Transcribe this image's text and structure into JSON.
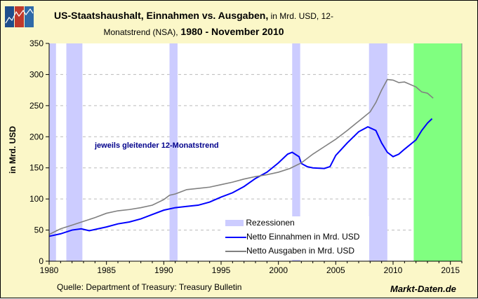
{
  "chart_data": {
    "type": "line",
    "title_bold_1": "US-Staatshaushalt, Einnahmen vs. Ausgaben,",
    "title_normal_1": " in Mrd. USD, 12-",
    "title_normal_2": "Monatstrend (NSA),",
    "title_bold_2": " 1980 - November 2010",
    "ylabel": "in Mrd. USD",
    "xlim": [
      1980,
      2016
    ],
    "ylim": [
      0,
      350
    ],
    "xticks": [
      1980,
      1985,
      1990,
      1995,
      2000,
      2005,
      2010,
      2015
    ],
    "yticks": [
      0,
      50,
      100,
      150,
      200,
      250,
      300,
      350
    ],
    "grid": "horizontal dashed",
    "annotation": "jeweils gleitender 12-Monatstrend",
    "source": "Quelle: Department of Treasury: Treasury Bulletin",
    "brand": "Markt-Daten.de",
    "legend_placement": "bottom-center",
    "recessions": [
      [
        1980.0,
        1980.6
      ],
      [
        1981.5,
        1982.9
      ],
      [
        1990.5,
        1991.2
      ],
      [
        2001.2,
        2001.9
      ],
      [
        2007.9,
        2009.5
      ]
    ],
    "recession_label": "Rezessionen",
    "recession_color": "#ccccff",
    "highlight": [
      2011.8,
      2016
    ],
    "highlight_color": "#80ff80",
    "series": [
      {
        "name": "Netto Einnahmen in Mrd. USD",
        "color": "#0000ff",
        "x": [
          1980,
          1981,
          1982,
          1982.8,
          1983.5,
          1985,
          1986,
          1987,
          1988,
          1989,
          1990,
          1991,
          1992,
          1993,
          1994,
          1995,
          1996,
          1997,
          1998,
          1999,
          2000,
          2000.8,
          2001.2,
          2001.8,
          2002,
          2002.5,
          2003,
          2004,
          2004.5,
          2005,
          2006,
          2007,
          2007.8,
          2008.5,
          2009,
          2009.5,
          2010,
          2010.5,
          2011,
          2012,
          2012.5,
          2013,
          2013.4
        ],
        "values": [
          40,
          44,
          50,
          52,
          49,
          55,
          60,
          63,
          68,
          75,
          82,
          86,
          88,
          90,
          95,
          103,
          110,
          120,
          133,
          143,
          158,
          172,
          175,
          168,
          157,
          152,
          150,
          149,
          152,
          170,
          190,
          208,
          216,
          210,
          190,
          175,
          168,
          172,
          180,
          195,
          210,
          222,
          229
        ]
      },
      {
        "name": "Netto Ausgaben in Mrd. USD",
        "color": "#808080",
        "x": [
          1980,
          1981,
          1982,
          1983,
          1984,
          1985,
          1986,
          1987,
          1988,
          1989,
          1990,
          1990.5,
          1991,
          1992,
          1993,
          1994,
          1995,
          1996,
          1997,
          1998,
          1999,
          2000,
          2001,
          2002,
          2003,
          2004,
          2005,
          2006,
          2007,
          2008,
          2008.5,
          2009,
          2009.5,
          2010,
          2010.5,
          2011,
          2012,
          2012.5,
          2013,
          2013.5
        ],
        "values": [
          43,
          52,
          58,
          64,
          70,
          77,
          81,
          83,
          86,
          90,
          99,
          106,
          108,
          115,
          117,
          119,
          123,
          127,
          132,
          136,
          139,
          143,
          149,
          158,
          172,
          184,
          196,
          210,
          225,
          240,
          255,
          275,
          292,
          291,
          287,
          288,
          280,
          272,
          270,
          262
        ]
      }
    ]
  }
}
